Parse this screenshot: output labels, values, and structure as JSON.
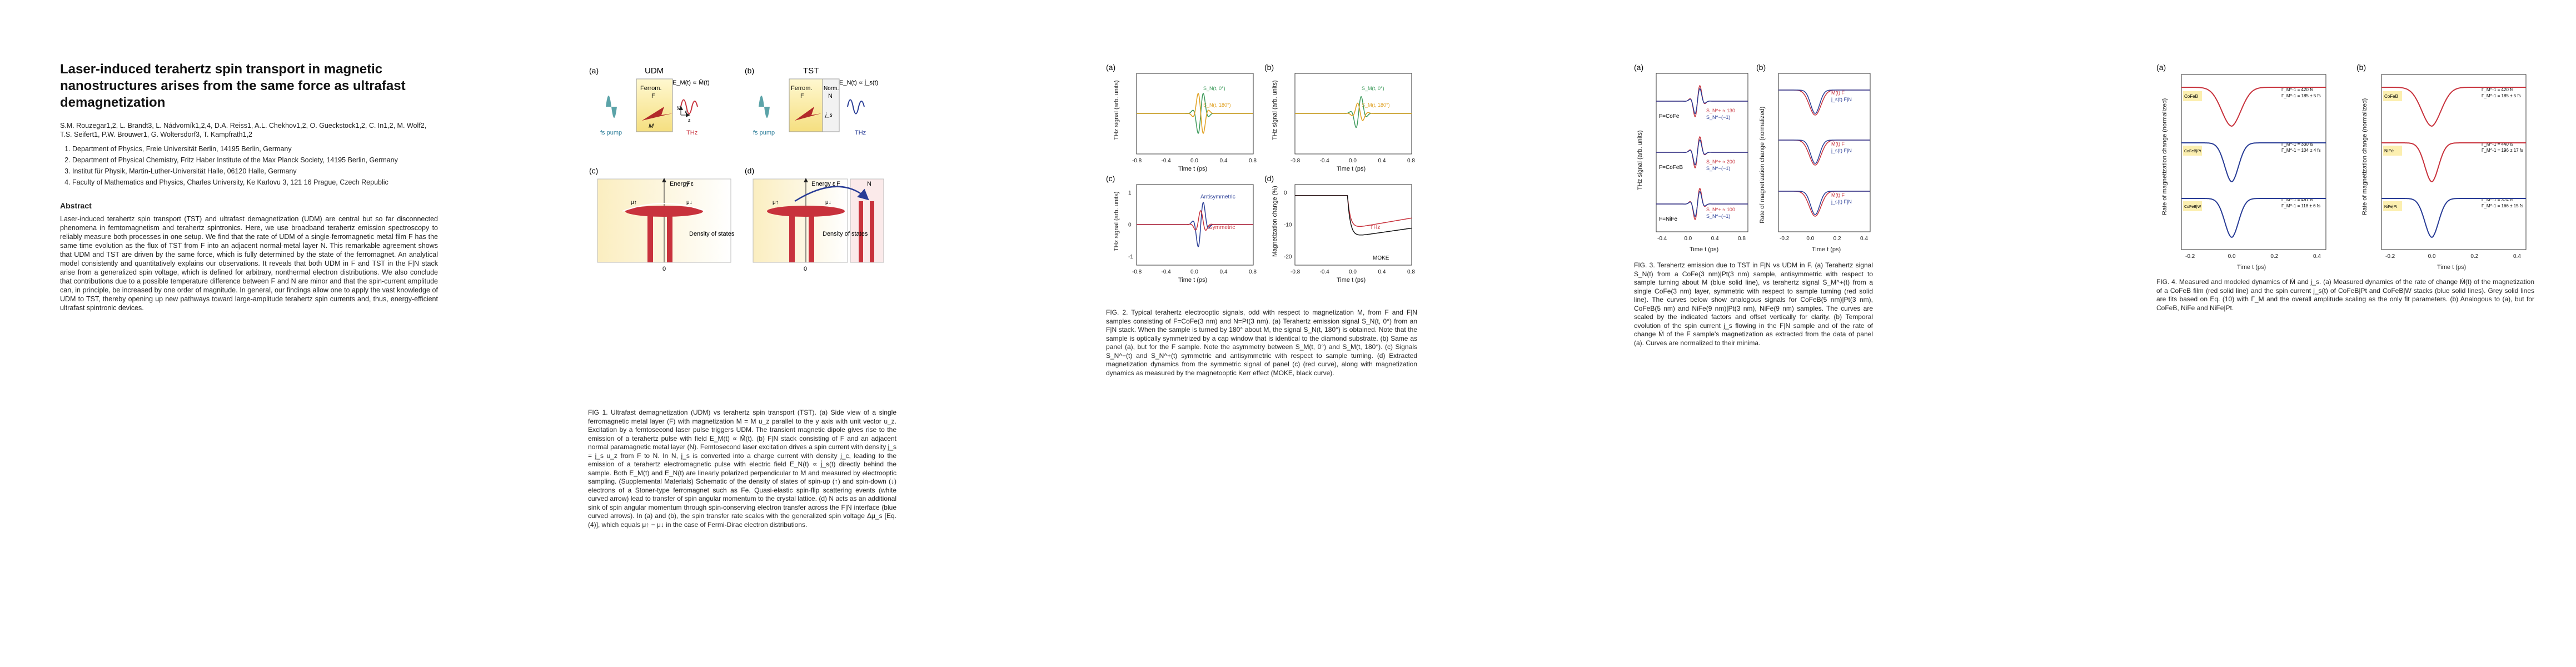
{
  "paper": {
    "title": "Laser-induced terahertz spin transport in magnetic nanostructures arises from the same force as ultrafast demagnetization",
    "authors": "S.M. Rouzegar1,2, L. Brandt3, L. Nádvorník1,2,4, D.A. Reiss1, A.L. Chekhov1,2, O. Gueckstock1,2, C. In1,2, M. Wolf2, T.S. Seifert1, P.W. Brouwer1, G. Woltersdorf3, T. Kampfrath1,2",
    "affiliations": [
      "Department of Physics, Freie Universität Berlin, 14195 Berlin, Germany",
      "Department of Physical Chemistry, Fritz Haber Institute of the Max Planck Society, 14195 Berlin, Germany",
      "Institut für Physik, Martin-Luther-Universität Halle, 06120 Halle, Germany",
      "Faculty of Mathematics and Physics, Charles University, Ke Karlovu 3, 121 16 Prague, Czech Republic"
    ],
    "abstract_heading": "Abstract",
    "abstract": "Laser-induced terahertz spin transport (TST) and ultrafast demagnetization (UDM) are central but so far disconnected phenomena in femtomagnetism and terahertz spintronics. Here, we use broadband terahertz emission spectroscopy to reliably measure both processes in one setup. We find that the rate of UDM of a single-ferromagnetic metal film F has the same time evolution as the flux of TST from F into an adjacent normal-metal layer N. This remarkable agreement shows that UDM and TST are driven by the same force, which is fully determined by the state of the ferromagnet. An analytical model consistently and quantitatively explains our observations. It reveals that both UDM in F and TST in the F|N stack arise from a generalized spin voltage, which is defined for arbitrary, nonthermal electron distributions. We also conclude that contributions due to a possible temperature difference between F and N are minor and that the spin-current amplitude can, in principle, be increased by one order of magnitude. In general, our findings allow one to apply the vast knowledge of UDM to TST, thereby opening up new pathways toward large-amplitude terahertz spin currents and, thus, energy-efficient ultrafast spintronic devices."
  },
  "fig1": {
    "labels": {
      "a": "(a)",
      "b": "(b)",
      "c": "(c)",
      "d": "(d)"
    },
    "udm": "UDM",
    "tst": "TST",
    "ferrom": "Ferrom.",
    "F": "F",
    "norm": "Norm.",
    "N": "N",
    "M": "M",
    "fs_pump": "fs pump",
    "thz": "THz",
    "eq_a": "E_M(t) ∝ M̈(t)",
    "eq_b": "E_N(t) ∝ j̇_s(t)",
    "js": "j_s",
    "energy": "Energy ε",
    "dos": "Density of states",
    "zero": "0",
    "mu_up": "μ↑",
    "mu_dn": "μ↓",
    "axis_x": "x",
    "axis_y": "y",
    "axis_z": "z",
    "caption": "FIG 1. Ultrafast demagnetization (UDM) vs terahertz spin transport (TST). (a) Side view of a single ferromagnetic metal layer (F) with magnetization M = M u_z parallel to the y axis with unit vector u_z. Excitation by a femtosecond laser pulse triggers UDM. The transient magnetic dipole gives rise to the emission of a terahertz pulse with field E_M(t) ∝ M̈(t). (b) F|N stack consisting of F and an adjacent normal paramagnetic metal layer (N). Femtosecond laser excitation drives a spin current with density j_s = j_s u_z from F to N. In N, j_s is converted into a charge current with density j_c, leading to the emission of a terahertz electromagnetic pulse with electric field E_N(t) ∝ j̇_s(t) directly behind the sample. Both E_M(t) and E_N(t) are linearly polarized perpendicular to M and measured by electrooptic sampling. (Supplemental Materials) Schematic of the density of states of spin-up (↑) and spin-down (↓) electrons of a Stoner-type ferromagnet such as Fe. Quasi-elastic spin-flip scattering events (white curved arrow) lead to transfer of spin angular momentum to the crystal lattice. (d) N acts as an additional sink of spin angular momentum through spin-conserving electron transfer across the F|N interface (blue curved arrows). In (a) and (b), the spin transfer rate scales with the generalized spin voltage Δμ_s [Eq. (4)], which equals μ↑ − μ↓ in the case of Fermi-Dirac electron distributions."
  },
  "fig2": {
    "labels": {
      "a": "(a)",
      "b": "(b)",
      "c": "(c)",
      "d": "(d)"
    },
    "ylabel_signal": "THz signal (arb. units)",
    "ylabel_mag": "Magnetization change (%)",
    "xlabel": "Time t (ps)",
    "xticks": [
      "-0.8",
      "-0.4",
      "0.0",
      "0.4",
      "0.8"
    ],
    "yticks_c": [
      "1",
      "0",
      "-1"
    ],
    "yticks_d": [
      "0",
      "-10",
      "-20"
    ],
    "legend_a": [
      "S_N(t, 0°)",
      "S_N(t, 180°)"
    ],
    "legend_b": [
      "S_M(t, 0°)",
      "S_M(t, 180°)"
    ],
    "legend_c": [
      "Antisymmetric",
      "Symmetric"
    ],
    "legend_d": [
      "THz",
      "MOKE"
    ],
    "caption": "FIG. 2. Typical terahertz electrooptic signals, odd with respect to magnetization M, from F and F|N samples consisting of F=CoFe(3 nm) and N=Pt(3 nm). (a) Terahertz emission signal S_N(t, 0°) from an F|N stack. When the sample is turned by 180° about M, the signal S_N(t, 180°) is obtained. Note that the sample is optically symmetrized by a cap window that is identical to the diamond substrate. (b) Same as panel (a), but for the F sample. Note the asymmetry between S_M(t, 0°) and S_M(t, 180°). (c) Signals S_N^−(t) and S_N^+(t) symmetric and antisymmetric with respect to sample turning. (d) Extracted magnetization dynamics from the symmetric signal of panel (c) (red curve), along with magnetization dynamics as measured by the magnetooptic Kerr effect (MOKE, black curve)."
  },
  "fig3": {
    "labels": {
      "a": "(a)",
      "b": "(b)"
    },
    "ylabel_a": "THz signal (arb. units)",
    "ylabel_b": "Rate of magnetization change (normalized)",
    "xlabel": "Time t (ps)",
    "xticks_a": [
      "-0.4",
      "0.0",
      "0.4",
      "0.8"
    ],
    "xticks_b": [
      "-0.2",
      "0.0",
      "0.2",
      "0.4"
    ],
    "sample_labels": [
      "F=CoFe",
      "F=CoFeB",
      "F=NiFe"
    ],
    "legend_a": [
      "S_N^+ ≈ 130",
      "S_N^−(−1)",
      "S_N^+ ≈ 200",
      "S_N^−(−1)",
      "S_N^+ ≈ 100",
      "S_N^−(−1)"
    ],
    "legend_b": [
      "Ṁ(t) F",
      "j_s(t) F|N"
    ],
    "caption": "FIG. 3. Terahertz emission due to TST in F|N vs UDM in F. (a) Terahertz signal S_N(t) from a CoFe(3 nm)|Pt(3 nm) sample, antisymmetric with respect to sample turning about M (blue solid line), vs terahertz signal S_M^+(t) from a single CoFe(3 nm) layer, symmetric with respect to sample turning (red solid line). The curves below show analogous signals for CoFeB(5 nm)|Pt(3 nm), CoFeB(5 nm) and NiFe(9 nm)|Pt(3 nm), NiFe(9 nm) samples. The curves are scaled by the indicated factors and offset vertically for clarity. (b) Temporal evolution of the spin current j_s flowing in the F|N sample and of the rate of change Ṁ of the F sample's magnetization as extracted from the data of panel (a). Curves are normalized to their minima."
  },
  "fig4": {
    "labels": {
      "a": "(a)",
      "b": "(b)"
    },
    "ylabel": "Rate of magnetization change (normalized)",
    "xlabel": "Time t (ps)",
    "xticks_a": [
      "-0.2",
      "0.0",
      "0.2",
      "0.4"
    ],
    "xticks_b": [
      "-0.2",
      "0.0",
      "0.2",
      "0.4"
    ],
    "tags_a": [
      "CoFeB",
      "CoFeB|Pt",
      "CoFeB|W"
    ],
    "tags_b": [
      "CoFeB",
      "NiFe",
      "NiFe|Pt"
    ],
    "fits_a": [
      "Γ_M^-1 = 420 fs",
      "Γ_M^-1 = 185 ± 5 fs",
      "Γ_M^-1 = 330 fs",
      "Γ_M^-1 = 104 ± 4 fs",
      "Γ_M^-1 = 481 fs",
      "Γ_M^-1 = 118 ± 6 fs"
    ],
    "fits_b": [
      "Γ_M^-1 = 420 fs",
      "Γ_M^-1 = 185 ± 5 fs",
      "Γ_M^-1 = 440 fs",
      "Γ_M^-1 = 196 ± 17 fs",
      "Γ_M^-1 = 374 fs",
      "Γ_M^-1 = 166 ± 15 fs"
    ],
    "caption": "FIG. 4. Measured and modeled dynamics of Ṁ and j_s. (a) Measured dynamics of the rate of change Ṁ(t) of the magnetization of a CoFeB film (red solid line) and the spin current j_s(t) of CoFeB|Pt and CoFeB|W stacks (blue solid lines). Grey solid lines are fits based on Eq. (10) with Γ_M and the overall amplitude scaling as the only fit parameters. (b) Analogous to (a), but for CoFeB, NiFe and NiFe|Pt."
  },
  "colors": {
    "red": "#c8323c",
    "blue": "#283c96",
    "orange": "#e0a020",
    "green": "#3c9a5a",
    "yellow_box": "#fcefb0",
    "grey": "#808080"
  }
}
